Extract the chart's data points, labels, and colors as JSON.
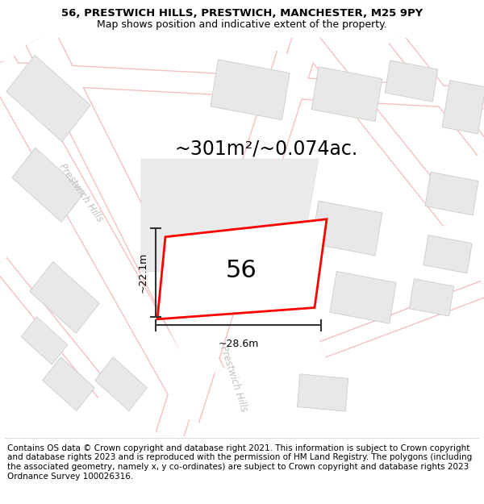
{
  "title_line1": "56, PRESTWICH HILLS, PRESTWICH, MANCHESTER, M25 9PY",
  "title_line2": "Map shows position and indicative extent of the property.",
  "area_text": "~301m²/~0.074ac.",
  "house_number": "56",
  "dim_height": "~22.1m",
  "dim_width": "~28.6m",
  "footer_text": "Contains OS data © Crown copyright and database right 2021. This information is subject to Crown copyright and database rights 2023 and is reproduced with the permission of HM Land Registry. The polygons (including the associated geometry, namely x, y co-ordinates) are subject to Crown copyright and database rights 2023 Ordnance Survey 100026316.",
  "bg_color": "#ffffff",
  "map_bg": "#ffffff",
  "road_stroke": "#f5c0c0",
  "building_color": "#e8e8e8",
  "building_stroke": "#cccccc",
  "plot_stroke": "#ff0000",
  "street_label_color": "#c0c0c0",
  "dim_color": "#333333",
  "title_fontsize": 9.5,
  "subtitle_fontsize": 9,
  "area_fontsize": 17,
  "number_fontsize": 22,
  "footer_fontsize": 7.5
}
